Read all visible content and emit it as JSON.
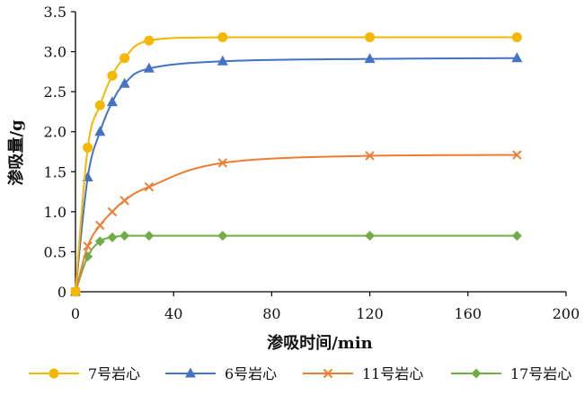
{
  "chart_data": {
    "type": "line",
    "xlabel": "渗吸时间/min",
    "ylabel": "渗吸量/g",
    "xlim": [
      0,
      200
    ],
    "ylim": [
      0,
      3.5
    ],
    "xticks": [
      "0",
      "40",
      "80",
      "120",
      "160",
      "200"
    ],
    "yticks": [
      "0",
      "0.5",
      "1.0",
      "1.5",
      "2.0",
      "2.5",
      "3.0",
      "3.5"
    ],
    "grid": false,
    "legend_position": "bottom",
    "series": [
      {
        "name": "7号岩心",
        "color": "#F5B800",
        "marker": "circle",
        "x": [
          0,
          5,
          10,
          15,
          20,
          30,
          60,
          120,
          180
        ],
        "values": [
          0,
          1.8,
          2.33,
          2.7,
          2.92,
          3.14,
          3.18,
          3.18,
          3.18
        ]
      },
      {
        "name": "6号岩心",
        "color": "#4472C4",
        "marker": "triangle",
        "x": [
          0,
          5,
          10,
          15,
          20,
          30,
          60,
          120,
          180
        ],
        "values": [
          0,
          1.43,
          2.0,
          2.37,
          2.6,
          2.79,
          2.88,
          2.91,
          2.92
        ]
      },
      {
        "name": "11号岩心",
        "color": "#ED7D31",
        "marker": "x",
        "x": [
          0,
          5,
          10,
          15,
          20,
          30,
          60,
          120,
          180
        ],
        "values": [
          0,
          0.57,
          0.83,
          1.0,
          1.14,
          1.31,
          1.61,
          1.7,
          1.71
        ]
      },
      {
        "name": "17号岩心",
        "color": "#70AD47",
        "marker": "diamond",
        "x": [
          0,
          5,
          10,
          15,
          20,
          30,
          60,
          120,
          180
        ],
        "values": [
          0,
          0.44,
          0.63,
          0.68,
          0.7,
          0.7,
          0.7,
          0.7,
          0.7
        ]
      }
    ]
  }
}
